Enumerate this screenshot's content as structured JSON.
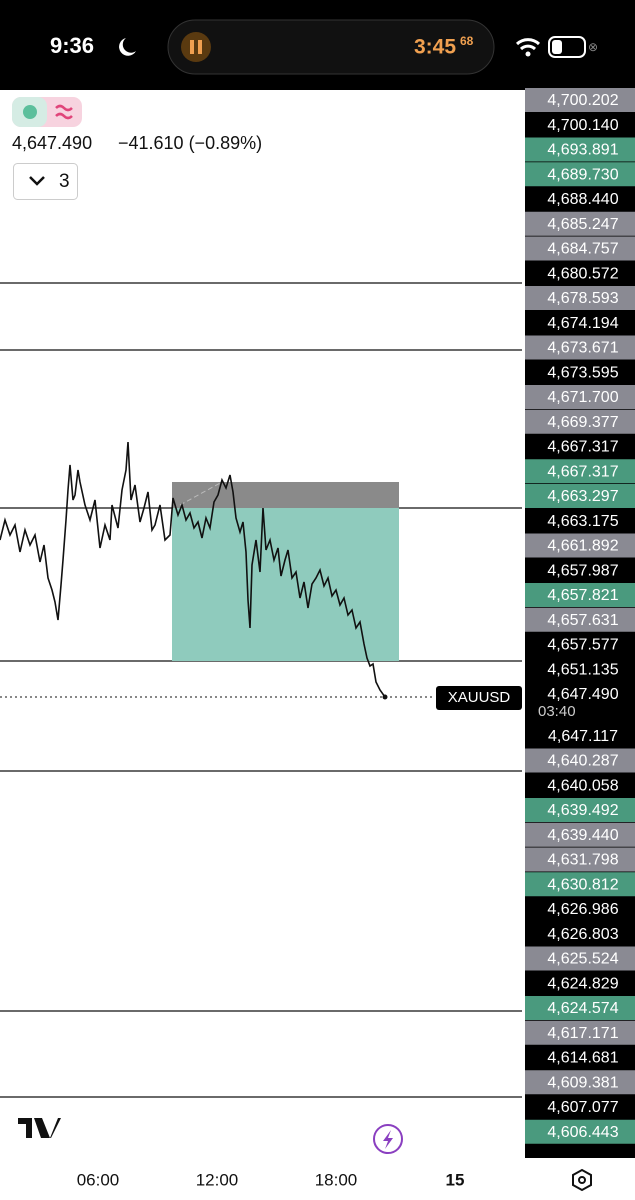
{
  "status_bar": {
    "time": "9:36",
    "timer": "3:45",
    "timer_fraction": "68"
  },
  "header": {
    "price": "4,647.490",
    "change": "−41.610 (−0.89%)",
    "interval": "3"
  },
  "symbol": "XAUUSD",
  "countdown": "03:40",
  "price_scale": [
    {
      "label": "4,700.202",
      "kind": "gray"
    },
    {
      "label": "4,700.140",
      "kind": "black"
    },
    {
      "label": "4,693.891",
      "kind": "green"
    },
    {
      "label": "4,689.730",
      "kind": "green"
    },
    {
      "label": "4,688.440",
      "kind": "black"
    },
    {
      "label": "4,685.247",
      "kind": "gray"
    },
    {
      "label": "4,684.757",
      "kind": "gray"
    },
    {
      "label": "4,680.572",
      "kind": "black"
    },
    {
      "label": "4,678.593",
      "kind": "gray"
    },
    {
      "label": "4,674.194",
      "kind": "black"
    },
    {
      "label": "4,673.671",
      "kind": "gray"
    },
    {
      "label": "4,673.595",
      "kind": "black"
    },
    {
      "label": "4,671.700",
      "kind": "gray"
    },
    {
      "label": "4,669.377",
      "kind": "gray"
    },
    {
      "label": "4,667.317",
      "kind": "black"
    },
    {
      "label": "4,667.317",
      "kind": "green"
    },
    {
      "label": "4,663.297",
      "kind": "green"
    },
    {
      "label": "4,663.175",
      "kind": "black"
    },
    {
      "label": "4,661.892",
      "kind": "gray"
    },
    {
      "label": "4,657.987",
      "kind": "black"
    },
    {
      "label": "4,657.821",
      "kind": "green"
    },
    {
      "label": "4,657.631",
      "kind": "gray"
    },
    {
      "label": "4,657.577",
      "kind": "black"
    },
    {
      "label": "4,651.135",
      "kind": "black"
    },
    {
      "label": "4,647.490",
      "kind": "black"
    },
    {
      "label": "4,647.117",
      "kind": "black"
    },
    {
      "label": "4,640.287",
      "kind": "gray"
    },
    {
      "label": "4,640.058",
      "kind": "black"
    },
    {
      "label": "4,639.492",
      "kind": "green"
    },
    {
      "label": "4,639.440",
      "kind": "gray"
    },
    {
      "label": "4,631.798",
      "kind": "gray"
    },
    {
      "label": "4,630.812",
      "kind": "green"
    },
    {
      "label": "4,626.986",
      "kind": "black"
    },
    {
      "label": "4,626.803",
      "kind": "black"
    },
    {
      "label": "4,625.524",
      "kind": "gray"
    },
    {
      "label": "4,624.829",
      "kind": "black"
    },
    {
      "label": "4,624.574",
      "kind": "green"
    },
    {
      "label": "4,617.171",
      "kind": "gray"
    },
    {
      "label": "4,614.681",
      "kind": "black"
    },
    {
      "label": "4,609.381",
      "kind": "gray"
    },
    {
      "label": "4,607.077",
      "kind": "black"
    },
    {
      "label": "4,606.443",
      "kind": "green"
    }
  ],
  "time_axis": [
    "06:00",
    "12:00",
    "18:00",
    "15"
  ]
}
